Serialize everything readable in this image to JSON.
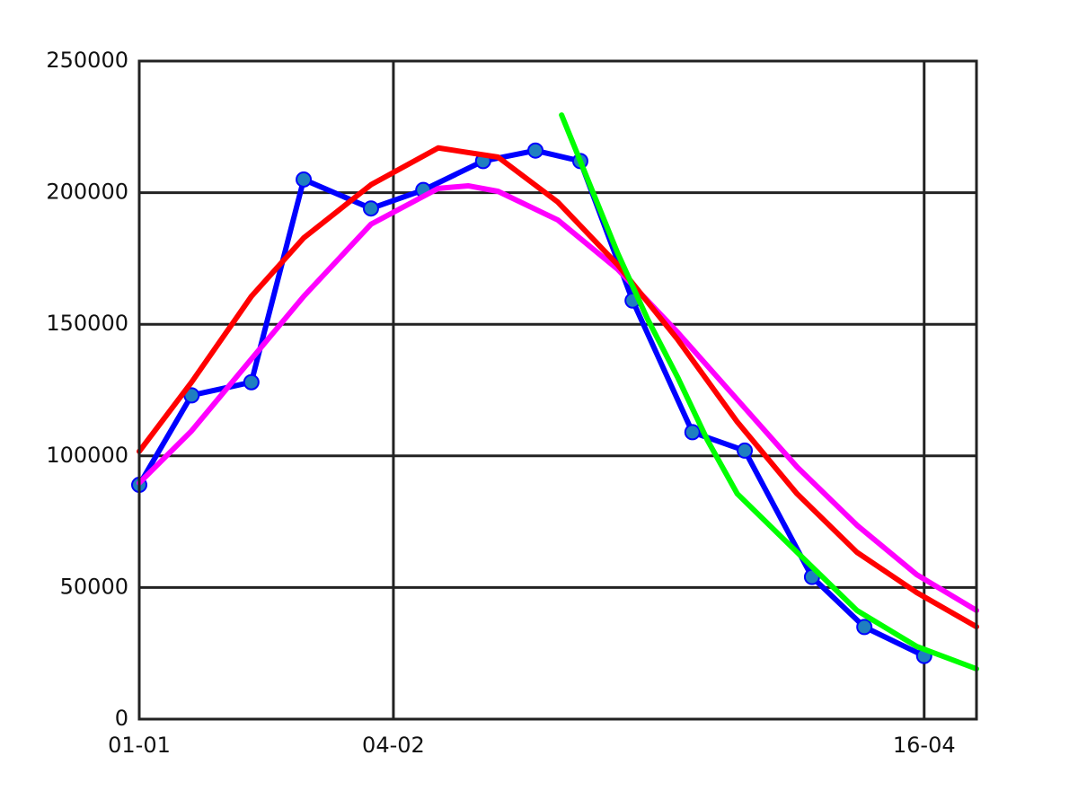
{
  "chart_data": {
    "type": "line",
    "xlim": [
      0,
      112
    ],
    "xticks": [
      {
        "value": 0,
        "label": "01-01"
      },
      {
        "value": 34,
        "label": "04-02"
      },
      {
        "value": 105,
        "label": "16-04"
      }
    ],
    "ylim": [
      0,
      250000
    ],
    "yticks": [
      0,
      50000,
      100000,
      150000,
      200000,
      250000
    ],
    "grid": true,
    "series": [
      {
        "color": "#0000ff",
        "marker": true,
        "marker_color": "#1f7fc0",
        "x": [
          0,
          7,
          15,
          22,
          31,
          38,
          46,
          53,
          59,
          66,
          74,
          81,
          90,
          97,
          105
        ],
        "values": [
          89000,
          123000,
          128000,
          205000,
          194000,
          201000,
          212000,
          216000,
          212000,
          159000,
          109000,
          102000,
          54000,
          35000,
          24000
        ]
      },
      {
        "color": "#ff00ff",
        "x": [
          0,
          7,
          15,
          22,
          31,
          40,
          44,
          48,
          56,
          64,
          72,
          80,
          88,
          96,
          104,
          112
        ],
        "values": [
          89700,
          109500,
          136800,
          160600,
          188000,
          201600,
          202600,
          200500,
          189600,
          170900,
          147000,
          121400,
          95800,
          73700,
          54900,
          41300
        ]
      },
      {
        "color": "#ff0000",
        "x": [
          0,
          7,
          15,
          22,
          31,
          40,
          48,
          56,
          64,
          72,
          80,
          88,
          96,
          104,
          112
        ],
        "values": [
          101700,
          128000,
          160600,
          182800,
          203000,
          217000,
          213500,
          196400,
          172600,
          144300,
          112900,
          85600,
          63400,
          48100,
          35100
        ]
      },
      {
        "color": "#00ff00",
        "x": [
          56.5,
          60,
          64,
          68,
          72,
          76,
          80,
          88,
          96,
          104,
          112
        ],
        "values": [
          229500,
          205000,
          177000,
          152000,
          130000,
          106000,
          85600,
          63400,
          41300,
          27600,
          19100
        ]
      }
    ]
  }
}
